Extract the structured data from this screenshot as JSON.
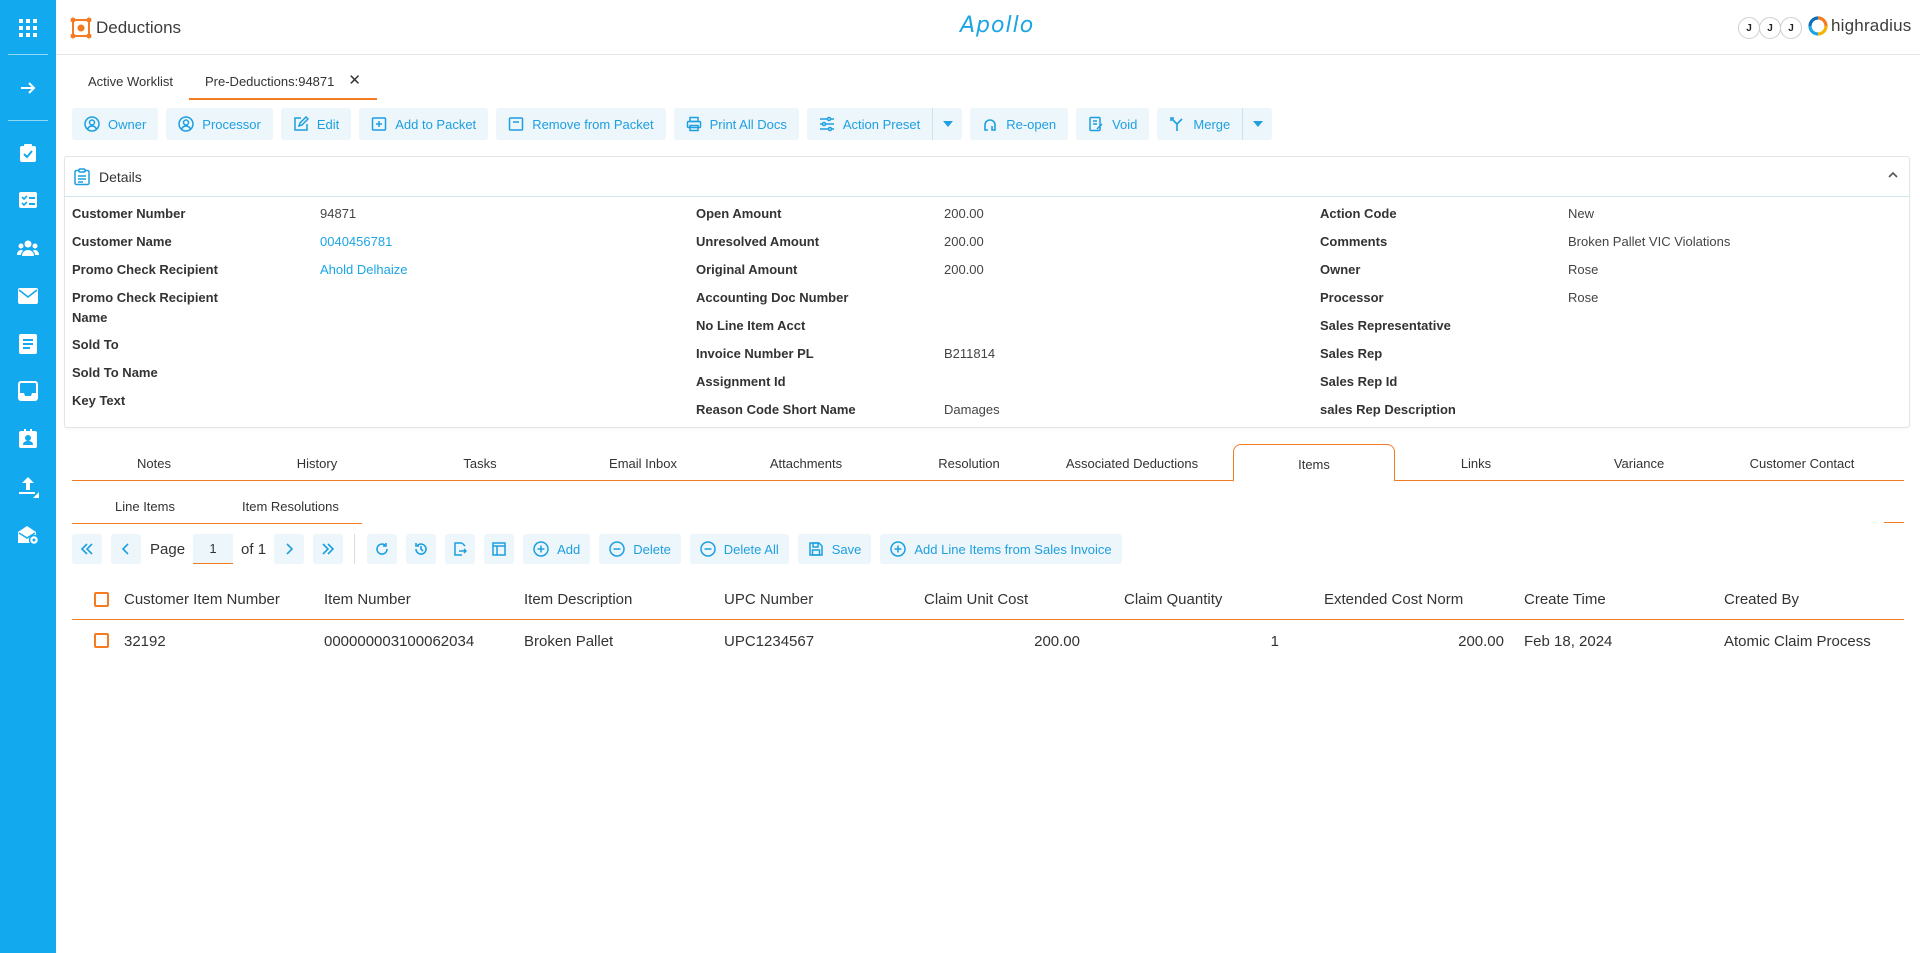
{
  "header": {
    "app_title": "Deductions",
    "brand": "Apollo",
    "avatars": [
      "J",
      "J",
      "J"
    ],
    "company": "highradius"
  },
  "nav_rail": {
    "icons": [
      "apps-grid-icon",
      "arrow-right-icon",
      "clipboard-check-icon",
      "checklist-icon",
      "users-icon",
      "mail-icon",
      "document-icon",
      "inbox-icon",
      "contact-card-icon",
      "upload-icon",
      "mail-settings-icon"
    ]
  },
  "top_tabs": [
    {
      "label": "Active Worklist"
    },
    {
      "label": "Pre-Deductions:94871"
    }
  ],
  "toolbar": {
    "owner": "Owner",
    "processor": "Processor",
    "edit": "Edit",
    "add_to_packet": "Add to Packet",
    "remove_from_packet": "Remove from Packet",
    "print_all_docs": "Print All Docs",
    "action_preset": "Action Preset",
    "reopen": "Re-open",
    "void": "Void",
    "merge": "Merge"
  },
  "details": {
    "title": "Details",
    "col1": [
      {
        "label": "Customer Number",
        "value": "94871"
      },
      {
        "label": "Customer Name",
        "value": "0040456781"
      },
      {
        "label": "Promo Check Recipient",
        "value": "Ahold Delhaize"
      },
      {
        "label": "Promo Check Recipient Name",
        "value": ""
      },
      {
        "label": "Sold To",
        "value": ""
      },
      {
        "label": "Sold To Name",
        "value": ""
      },
      {
        "label": "Key Text",
        "value": ""
      }
    ],
    "col2": [
      {
        "label": "Open Amount",
        "value": "200.00"
      },
      {
        "label": "Unresolved Amount",
        "value": "200.00"
      },
      {
        "label": "Original Amount",
        "value": "200.00"
      },
      {
        "label": "Accounting Doc Number",
        "value": ""
      },
      {
        "label": "No Line Item Acct",
        "value": ""
      },
      {
        "label": "Invoice Number PL",
        "value": "B211814"
      },
      {
        "label": "Assignment Id",
        "value": ""
      },
      {
        "label": "Reason Code Short Name",
        "value": "Damages"
      }
    ],
    "col3": [
      {
        "label": "Action Code",
        "value": "New"
      },
      {
        "label": "Comments",
        "value": "Broken Pallet VIC Violations"
      },
      {
        "label": "Owner",
        "value": "Rose"
      },
      {
        "label": "Processor",
        "value": "Rose"
      },
      {
        "label": "Sales Representative",
        "value": ""
      },
      {
        "label": "Sales Rep",
        "value": ""
      },
      {
        "label": "Sales Rep Id",
        "value": ""
      },
      {
        "label": "sales Rep Description",
        "value": ""
      }
    ]
  },
  "sec_tabs": [
    "Notes",
    "History",
    "Tasks",
    "Email Inbox",
    "Attachments",
    "Resolution",
    "Associated Deductions",
    "Items",
    "Links",
    "Variance",
    "Customer Contact"
  ],
  "sub_tabs": [
    "Line Items",
    "Item Resolutions"
  ],
  "grid": {
    "page_label": "Page",
    "page_value": "1",
    "of_label": "of 1",
    "add": "Add",
    "delete": "Delete",
    "delete_all": "Delete All",
    "save": "Save",
    "add_from_invoice": "Add Line Items from Sales Invoice"
  },
  "table": {
    "columns": [
      "Customer Item Number",
      "Item Number",
      "Item Description",
      "UPC Number",
      "Claim Unit Cost",
      "Claim Quantity",
      "Extended Cost Norm",
      "Create Time",
      "Created By"
    ],
    "rows": [
      [
        "32192",
        "000000003100062034",
        "Broken Pallet",
        "UPC1234567",
        "200.00",
        "1",
        "200.00",
        "Feb 18, 2024",
        "Atomic Claim Process"
      ]
    ]
  },
  "colors": {
    "rail": "#13a9ee",
    "accent": "#f47b20",
    "link": "#1aa5e4",
    "button_bg": "#edf6fb"
  }
}
